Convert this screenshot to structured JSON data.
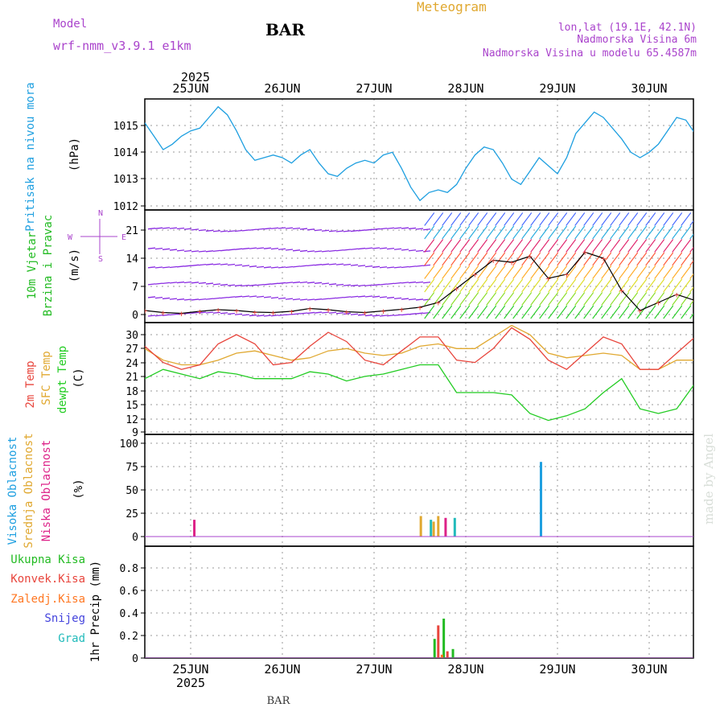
{
  "header": {
    "meteogram": "Meteogram",
    "model_label": "Model",
    "model_name": "wrf-nmm_v3.9.1 e1km",
    "station": "BAR",
    "lonlat": "lon,lat (19.1E, 42.1N)",
    "altitude": "Nadmorska Visina 6m",
    "model_altitude": "Nadmorska Visina u modelu 65.4587m",
    "footer_station": "BAR",
    "watermark": "made by Angel"
  },
  "colors": {
    "pressure": "#1e9fe0",
    "wind_label": "#22bb22",
    "temp2m": "#e8453c",
    "sfc": "#e0a830",
    "dewpt": "#22cc22",
    "high_cloud": "#1e9fe0",
    "mid_cloud": "#e0a830",
    "low_cloud": "#dd2288",
    "total_precip": "#22bb22",
    "conv_precip": "#e8453c",
    "frozen_precip": "#ff7722",
    "snow": "#4444dd",
    "grad": "#22bbbb",
    "purple": "#aa44cc"
  },
  "time_axis": {
    "year_top": "2025",
    "year_bottom": "2025",
    "days": [
      "25JUN",
      "26JUN",
      "27JUN",
      "28JUN",
      "29JUN",
      "30JUN"
    ]
  },
  "panels": {
    "pressure": {
      "title": "Pritisak na nivou mora",
      "unit": "(hPa)"
    },
    "wind": {
      "title_1": "10m Vjetar",
      "title_2": "Brzina i Pravac",
      "unit": "(m/s)",
      "compass_n": "N",
      "compass_w": "W",
      "compass_e": "E",
      "compass_s": "S"
    },
    "temp": {
      "t2m": "2m Temp",
      "sfc": "SFC Temp",
      "dew": "dewpt Temp",
      "unit": "(C)"
    },
    "cloud": {
      "high": "Visoka Oblacnost",
      "mid": "Srednja Oblacnost",
      "low": "Niska Oblacnost",
      "unit": "(%)"
    },
    "precip": {
      "total": "Ukupna Kisa",
      "conv": "Konvek.Kisa",
      "frozen": "Zaledj.Kisa",
      "snow": "Snijeg",
      "grad": "Grad",
      "unit": "1hr Precip (mm)"
    }
  },
  "chart_data": [
    {
      "type": "line",
      "name": "pressure",
      "x_unit": "days since 2025-06-25 00:00",
      "ylim": [
        1012,
        1016
      ],
      "yticks": [
        "1012",
        "1013",
        "1014",
        "1015"
      ],
      "x": [
        -0.5,
        -0.4,
        -0.3,
        -0.2,
        -0.1,
        0.0,
        0.1,
        0.2,
        0.3,
        0.4,
        0.5,
        0.6,
        0.7,
        0.8,
        0.9,
        1.0,
        1.1,
        1.2,
        1.3,
        1.4,
        1.5,
        1.6,
        1.7,
        1.8,
        1.9,
        2.0,
        2.1,
        2.2,
        2.3,
        2.4,
        2.5,
        2.6,
        2.7,
        2.8,
        2.9,
        3.0,
        3.1,
        3.2,
        3.3,
        3.4,
        3.5,
        3.6,
        3.7,
        3.8,
        3.9,
        4.0,
        4.1,
        4.2,
        4.3,
        4.4,
        4.5,
        4.6,
        4.7,
        4.8,
        4.9,
        5.0,
        5.1,
        5.2,
        5.3,
        5.4,
        5.5
      ],
      "series": [
        {
          "values": [
            1015.1,
            1014.6,
            1014.1,
            1014.3,
            1014.6,
            1014.8,
            1014.9,
            1015.3,
            1015.7,
            1015.4,
            1014.8,
            1014.1,
            1013.7,
            1013.8,
            1013.9,
            1013.8,
            1013.6,
            1013.9,
            1014.1,
            1013.6,
            1013.2,
            1013.1,
            1013.4,
            1013.6,
            1013.7,
            1013.6,
            1013.9,
            1014.0,
            1013.4,
            1012.7,
            1012.2,
            1012.5,
            1012.6,
            1012.5,
            1012.8,
            1013.4,
            1013.9,
            1014.2,
            1014.1,
            1013.6,
            1013.0,
            1012.8,
            1013.3,
            1013.8,
            1013.5,
            1013.2,
            1013.8,
            1014.7,
            1015.1,
            1015.5,
            1015.3,
            1014.9,
            1014.5,
            1014.0,
            1013.8,
            1014.0,
            1014.3,
            1014.8,
            1015.3,
            1015.2,
            1014.7
          ]
        }
      ]
    },
    {
      "type": "line",
      "name": "wind_speed",
      "x_unit": "days since 2025-06-25 00:00",
      "ylim": [
        -2,
        24
      ],
      "yticks": [
        "0",
        "7",
        "14",
        "21"
      ],
      "x": [
        -0.5,
        -0.3,
        -0.1,
        0.1,
        0.3,
        0.5,
        0.7,
        0.9,
        1.1,
        1.3,
        1.5,
        1.7,
        1.9,
        2.1,
        2.3,
        2.5,
        2.7,
        2.9,
        3.1,
        3.3,
        3.5,
        3.7,
        3.9,
        4.1,
        4.3,
        4.5,
        4.7,
        4.9,
        5.1,
        5.3,
        5.5
      ],
      "series": [
        {
          "values": [
            1,
            0.5,
            0.3,
            0.8,
            1.2,
            1.0,
            0.6,
            0.5,
            0.8,
            1.5,
            1.2,
            0.7,
            0.5,
            0.9,
            1.3,
            1.8,
            3.0,
            6.5,
            10.0,
            13.5,
            13.0,
            14.5,
            9.0,
            10.0,
            15.5,
            14.0,
            6.0,
            1.0,
            3.0,
            5.0,
            3.5
          ]
        }
      ]
    },
    {
      "type": "line",
      "name": "temperature",
      "x_unit": "days since 2025-06-25 00:00",
      "ylim": [
        9,
        32
      ],
      "yticks": [
        "9",
        "12",
        "15",
        "18",
        "21",
        "24",
        "27",
        "30"
      ],
      "x": [
        -0.5,
        -0.3,
        -0.1,
        0.1,
        0.3,
        0.5,
        0.7,
        0.9,
        1.1,
        1.3,
        1.5,
        1.7,
        1.9,
        2.1,
        2.3,
        2.5,
        2.7,
        2.9,
        3.1,
        3.3,
        3.5,
        3.7,
        3.9,
        4.1,
        4.3,
        4.5,
        4.7,
        4.9,
        5.1,
        5.3,
        5.5
      ],
      "series": [
        {
          "values": [
            27.0,
            24.5,
            23.5,
            23.5,
            24.5,
            26.0,
            26.5,
            25.5,
            24.5,
            25.0,
            26.5,
            27.0,
            26.0,
            25.5,
            26.0,
            27.5,
            28.0,
            27.0,
            27.0,
            29.5,
            32.0,
            30.0,
            26.0,
            25.0,
            25.5,
            26.0,
            25.5,
            22.5,
            22.5,
            24.5,
            24.5
          ]
        },
        {
          "values": [
            27.5,
            24.0,
            22.5,
            23.5,
            28.0,
            30.0,
            28.0,
            23.5,
            24.0,
            27.5,
            30.5,
            28.5,
            24.5,
            23.5,
            26.5,
            29.5,
            29.5,
            24.5,
            24.0,
            27.0,
            31.5,
            29.0,
            24.5,
            22.5,
            26.0,
            29.5,
            28.0,
            22.5,
            22.5,
            26.0,
            29.5
          ]
        },
        {
          "values": [
            20.5,
            22.5,
            21.5,
            20.5,
            22.0,
            21.5,
            20.5,
            20.5,
            20.5,
            22.0,
            21.5,
            20.0,
            21.0,
            21.5,
            22.5,
            23.5,
            23.5,
            17.5,
            17.5,
            17.5,
            17.0,
            13.0,
            11.5,
            12.5,
            14.0,
            17.5,
            20.5,
            14.0,
            13.0,
            14.0,
            19.5
          ]
        }
      ]
    },
    {
      "type": "bar",
      "name": "cloud_cover",
      "x_unit": "days since 2025-06-25 00:00",
      "ylim": [
        -8,
        108
      ],
      "yticks": [
        "0",
        "25",
        "50",
        "75",
        "100"
      ],
      "series": [
        {
          "key": "high",
          "x": [
            3.82
          ],
          "values": [
            80
          ]
        },
        {
          "key": "mid",
          "x": [
            2.51,
            2.65,
            2.7
          ],
          "values": [
            22,
            16,
            22
          ]
        },
        {
          "key": "low",
          "x": [
            0.04,
            2.78
          ],
          "values": [
            18,
            20
          ]
        },
        {
          "key": "grad",
          "x": [
            2.62,
            2.88
          ],
          "values": [
            18,
            20
          ]
        }
      ]
    },
    {
      "type": "bar",
      "name": "precip_1hr",
      "x_unit": "days since 2025-06-25 00:00",
      "ylim": [
        0,
        1.0
      ],
      "yticks": [
        "0",
        "0.2",
        "0.4",
        "0.6",
        "0.8"
      ],
      "series": [
        {
          "key": "total",
          "x": [
            2.66,
            2.76,
            2.86
          ],
          "values": [
            0.17,
            0.35,
            0.08
          ]
        },
        {
          "key": "conv",
          "x": [
            2.7,
            2.8
          ],
          "values": [
            0.29,
            0.06
          ]
        },
        {
          "key": "frozen",
          "x": [
            2.74
          ],
          "values": [
            0.03
          ]
        }
      ]
    }
  ]
}
